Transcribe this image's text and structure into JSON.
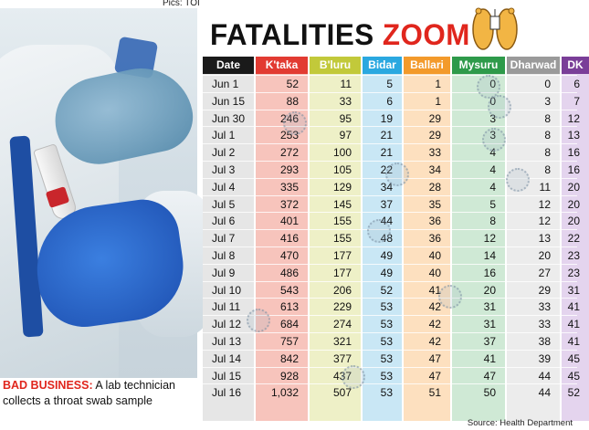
{
  "credit": "Pics: TOI",
  "headline": {
    "word1": "FATALITIES",
    "word2": "ZOOM"
  },
  "caption": {
    "lead": "BAD BUSINESS:",
    "text": "A lab technician collects a throat swab sample"
  },
  "source": "Source: Health Department",
  "colors": {
    "accent": "#e0261d"
  },
  "table": {
    "columns": [
      {
        "key": "date",
        "label": "Date",
        "header_color": "#1a1a1a",
        "body_color": "#e6e6e6"
      },
      {
        "key": "ktaka",
        "label": "K'taka",
        "header_color": "#e23b32",
        "body_color": "#f7c4bc"
      },
      {
        "key": "bluru",
        "label": "B'luru",
        "header_color": "#c2c93a",
        "body_color": "#eef0c7"
      },
      {
        "key": "bidar",
        "label": "Bidar",
        "header_color": "#2aa8e0",
        "body_color": "#c9e7f5"
      },
      {
        "key": "ballari",
        "label": "Ballari",
        "header_color": "#f39a2b",
        "body_color": "#fde0bf"
      },
      {
        "key": "mysuru",
        "label": "Mysuru",
        "header_color": "#2e9a4a",
        "body_color": "#cfe9d5"
      },
      {
        "key": "dharwad",
        "label": "Dharwad",
        "header_color": "#9a9a9a",
        "body_color": "#ececec"
      },
      {
        "key": "dk",
        "label": "DK",
        "header_color": "#7a3e98",
        "body_color": "#e4d4ee"
      }
    ],
    "rows": [
      [
        "Jun 1",
        "52",
        "11",
        "5",
        "1",
        "0",
        "0",
        "6"
      ],
      [
        "Jun 15",
        "88",
        "33",
        "6",
        "1",
        "0",
        "3",
        "7"
      ],
      [
        "Jun 30",
        "246",
        "95",
        "19",
        "29",
        "3",
        "8",
        "12"
      ],
      [
        "Jul 1",
        "253",
        "97",
        "21",
        "29",
        "3",
        "8",
        "13"
      ],
      [
        "Jul 2",
        "272",
        "100",
        "21",
        "33",
        "4",
        "8",
        "16"
      ],
      [
        "Jul 3",
        "293",
        "105",
        "22",
        "34",
        "4",
        "8",
        "16"
      ],
      [
        "Jul 4",
        "335",
        "129",
        "34",
        "28",
        "4",
        "11",
        "20"
      ],
      [
        "Jul 5",
        "372",
        "145",
        "37",
        "35",
        "5",
        "12",
        "20"
      ],
      [
        "Jul 6",
        "401",
        "155",
        "44",
        "36",
        "8",
        "12",
        "20"
      ],
      [
        "Jul 7",
        "416",
        "155",
        "48",
        "36",
        "12",
        "13",
        "22"
      ],
      [
        "Jul 8",
        "470",
        "177",
        "49",
        "40",
        "14",
        "20",
        "23"
      ],
      [
        "Jul 9",
        "486",
        "177",
        "49",
        "40",
        "16",
        "27",
        "23"
      ],
      [
        "Jul 10",
        "543",
        "206",
        "52",
        "41",
        "20",
        "29",
        "31"
      ],
      [
        "Jul 11",
        "613",
        "229",
        "53",
        "42",
        "31",
        "33",
        "41"
      ],
      [
        "Jul 12",
        "684",
        "274",
        "53",
        "42",
        "31",
        "33",
        "41"
      ],
      [
        "Jul 13",
        "757",
        "321",
        "53",
        "42",
        "37",
        "38",
        "41"
      ],
      [
        "Jul 14",
        "842",
        "377",
        "53",
        "47",
        "41",
        "39",
        "45"
      ],
      [
        "Jul 15",
        "928",
        "437",
        "53",
        "47",
        "47",
        "44",
        "45"
      ],
      [
        "Jul 16",
        "1,032",
        "507",
        "53",
        "51",
        "50",
        "44",
        "52"
      ]
    ]
  }
}
